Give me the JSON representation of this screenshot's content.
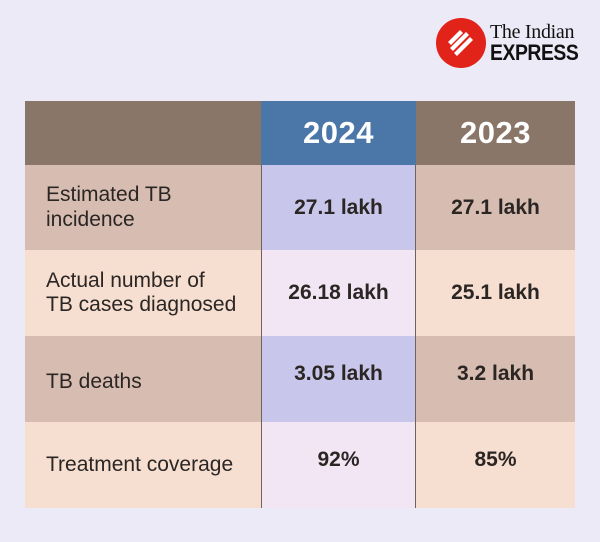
{
  "brand": {
    "line1": "The Indian",
    "line2": "EXPRESS",
    "logo_color": "#e2231a",
    "icon": "indian-express-logo-icon"
  },
  "table": {
    "years": [
      "2024",
      "2023"
    ],
    "colors": {
      "header": "#8a7569",
      "header_2024": "#4a76a8",
      "row_dark": "#d7bdb1",
      "row_dark_2024": "#c8c6ea",
      "row_light": "#f6dfd1",
      "row_light_2024": "#f2e6f5"
    },
    "rows": [
      {
        "label_line1": "Estimated TB",
        "label_line2": "incidence",
        "v2024": "27.1 lakh",
        "v2023": "27.1 lakh"
      },
      {
        "label_line1": "Actual number of",
        "label_line2": "TB cases diagnosed",
        "v2024": "26.18 lakh",
        "v2023": "25.1 lakh"
      },
      {
        "label_line1": "TB deaths",
        "label_line2": "",
        "v2024": "3.05 lakh",
        "v2023": "3.2 lakh"
      },
      {
        "label_line1": "Treatment coverage",
        "label_line2": "",
        "v2024": "92%",
        "v2023": "85%"
      }
    ]
  }
}
